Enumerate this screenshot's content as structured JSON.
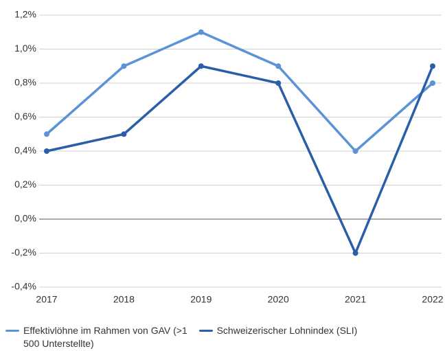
{
  "chart_data": {
    "type": "line",
    "categories": [
      "2017",
      "2018",
      "2019",
      "2020",
      "2021",
      "2022"
    ],
    "series": [
      {
        "name": "Effektivlöhne im Rahmen von GAV (>1 500 Unterstellte)",
        "color": "#5b93d6",
        "values": [
          0.5,
          0.9,
          1.1,
          0.9,
          0.4,
          0.8
        ]
      },
      {
        "name": "Schweizerischer Lohnindex (SLI)",
        "color": "#2a5ea8",
        "values": [
          0.4,
          0.5,
          0.9,
          0.8,
          -0.2,
          0.9
        ]
      }
    ],
    "ylim": [
      -0.4,
      1.2
    ],
    "yticks": [
      {
        "value": -0.4,
        "label": "-0,4%"
      },
      {
        "value": -0.2,
        "label": "-0,2%"
      },
      {
        "value": 0,
        "label": "0,0%"
      },
      {
        "value": 0.2,
        "label": "0,2%"
      },
      {
        "value": 0.4,
        "label": "0,4%"
      },
      {
        "value": 0.6,
        "label": "0,6%"
      },
      {
        "value": 0.8,
        "label": "0,8%"
      },
      {
        "value": 1.0,
        "label": "1,0%"
      },
      {
        "value": 1.2,
        "label": "1,2%"
      }
    ],
    "grid": true
  }
}
